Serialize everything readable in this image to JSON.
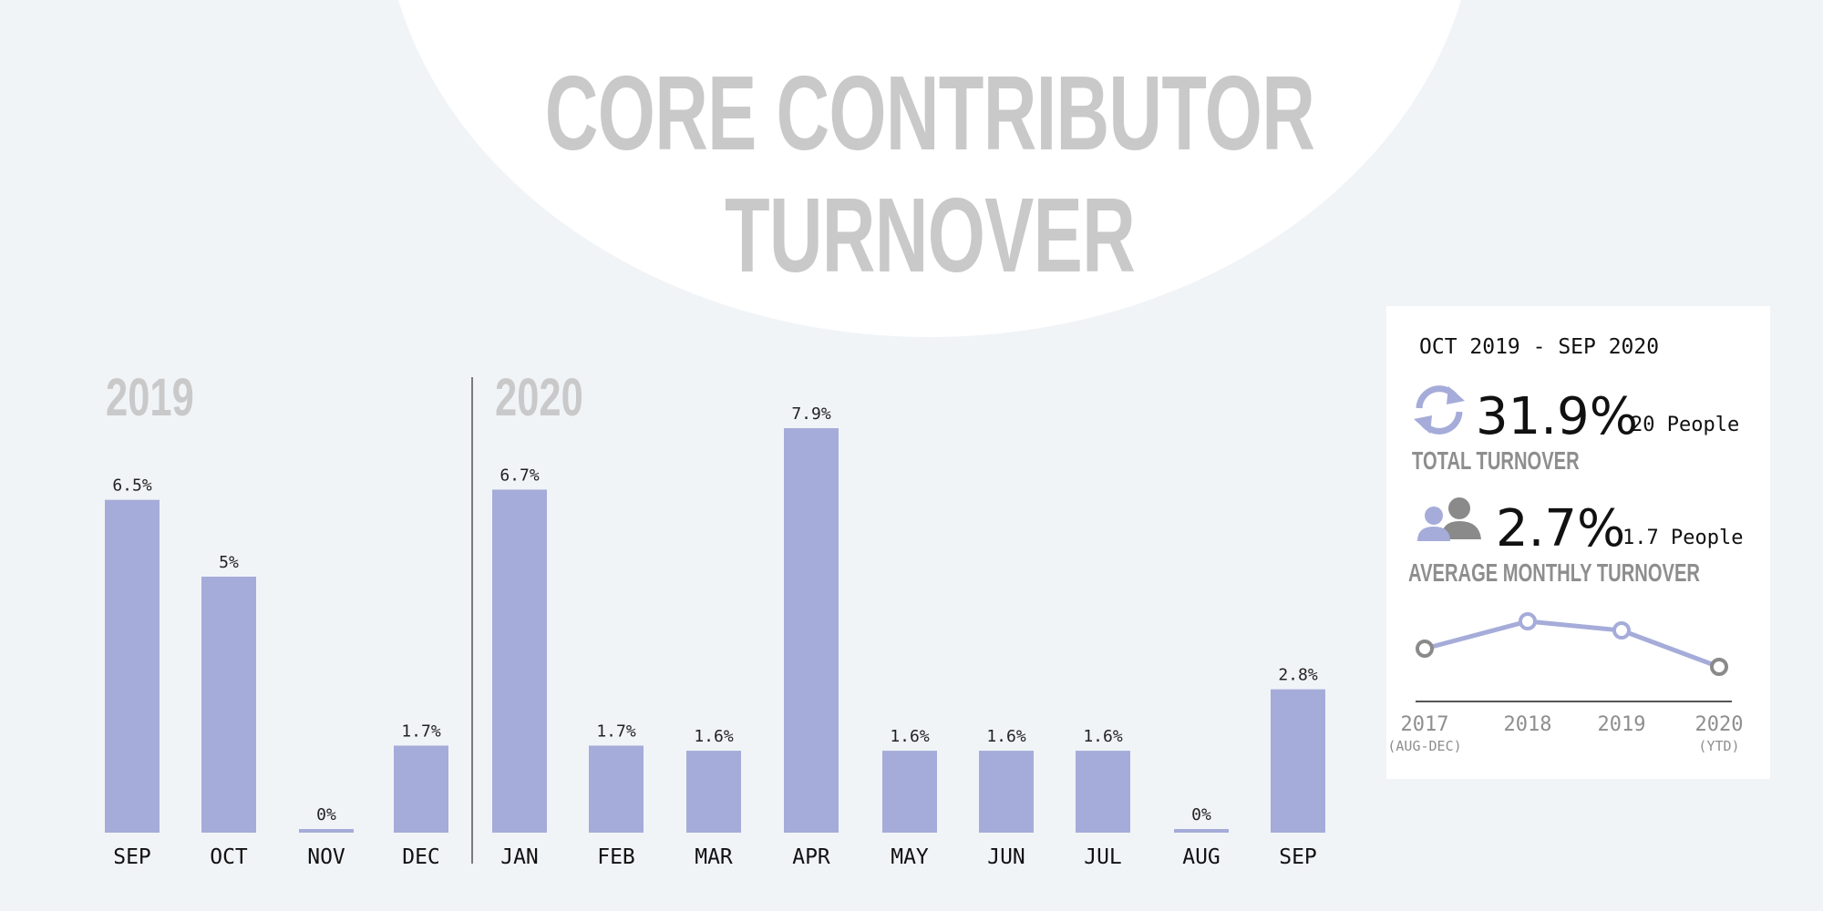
{
  "title": {
    "line1": "CORE CONTRIBUTOR",
    "line2": "TURNOVER"
  },
  "colors": {
    "bar": "#a5acd9",
    "title": "#c9c9c9",
    "caption": "#8e8e8e",
    "trend_line": "#a5acd9",
    "trend_marker_gray": "#8a8a8a"
  },
  "years": {
    "left": "2019",
    "right": "2020"
  },
  "chart_data": [
    {
      "type": "bar",
      "categories": [
        "SEP",
        "OCT",
        "NOV",
        "DEC",
        "JAN",
        "FEB",
        "MAR",
        "APR",
        "MAY",
        "JUN",
        "JUL",
        "AUG",
        "SEP"
      ],
      "values": [
        6.5,
        5,
        0,
        1.7,
        6.7,
        1.7,
        1.6,
        7.9,
        1.6,
        1.6,
        1.6,
        0,
        2.8
      ],
      "value_labels": [
        "6.5%",
        "5%",
        "0%",
        "1.7%",
        "6.7%",
        "1.7%",
        "1.6%",
        "7.9%",
        "1.6%",
        "1.6%",
        "1.6%",
        "0%",
        "2.8%"
      ],
      "groups": [
        "2019",
        "2020"
      ],
      "ylim": [
        0,
        7.9
      ],
      "grid": false
    },
    {
      "type": "line",
      "categories": [
        "2017",
        "2018",
        "2019",
        "2020"
      ],
      "category_notes": [
        "(AUG-DEC)",
        "",
        "",
        "(YTD)"
      ],
      "values": [
        2.5,
        3.1,
        2.9,
        2.1
      ],
      "grid": false
    }
  ],
  "summary": {
    "period": "OCT 2019 - SEP 2020",
    "total_value": "31.9%",
    "total_people": "20 People",
    "total_caption": "TOTAL TURNOVER",
    "total_icon": "refresh-cycle-icon",
    "avg_value": "2.7%",
    "avg_people": "1.7 People",
    "avg_caption": "AVERAGE MONTHLY TURNOVER",
    "avg_icon": "people-icon"
  }
}
